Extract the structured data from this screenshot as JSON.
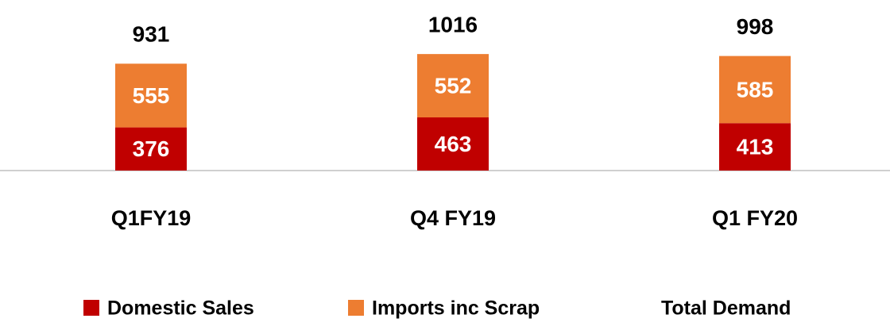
{
  "chart_data": {
    "type": "stacked_bar",
    "categories": [
      "Q1FY19",
      "Q4 FY19",
      "Q1 FY20"
    ],
    "series": [
      {
        "name": "Domestic Sales",
        "color": "#c00000",
        "values": [
          376,
          463,
          413
        ]
      },
      {
        "name": "Imports inc Scrap",
        "color": "#ed7d31",
        "values": [
          555,
          552,
          585
        ]
      },
      {
        "name": "Total Demand",
        "values": [
          931,
          1016,
          998
        ]
      }
    ]
  }
}
